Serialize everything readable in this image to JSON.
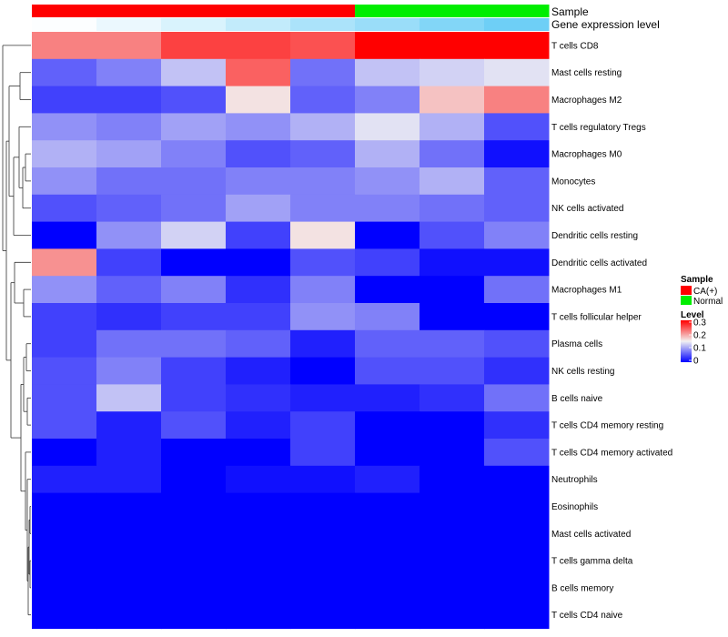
{
  "chart_data": {
    "type": "heatmap",
    "rows": [
      "T cells CD8",
      "Mast cells resting",
      "Macrophages M2",
      "T cells regulatory  Tregs",
      "Macrophages M0",
      "Monocytes",
      "NK cells activated",
      "Dendritic cells resting",
      "Dendritic cells activated",
      "Macrophages M1",
      "T cells follicular helper",
      "Plasma cells",
      "NK cells resting",
      "B cells naive",
      "T cells CD4 memory resting",
      "T cells CD4 memory activated",
      "Neutrophils",
      "Eosinophils",
      "Mast cells activated",
      "T cells gamma delta",
      "B cells memory",
      "T cells CD4 naive"
    ],
    "values": [
      [
        0.22,
        0.22,
        0.26,
        0.26,
        0.25,
        0.3,
        0.3,
        0.3
      ],
      [
        0.06,
        0.08,
        0.12,
        0.24,
        0.07,
        0.12,
        0.13,
        0.14
      ],
      [
        0.04,
        0.04,
        0.05,
        0.16,
        0.06,
        0.08,
        0.18,
        0.22
      ],
      [
        0.09,
        0.08,
        0.1,
        0.09,
        0.11,
        0.14,
        0.11,
        0.05
      ],
      [
        0.11,
        0.1,
        0.08,
        0.05,
        0.06,
        0.11,
        0.07,
        0.01
      ],
      [
        0.09,
        0.07,
        0.07,
        0.08,
        0.08,
        0.09,
        0.11,
        0.06
      ],
      [
        0.05,
        0.06,
        0.07,
        0.1,
        0.08,
        0.08,
        0.07,
        0.06
      ],
      [
        0.0,
        0.09,
        0.13,
        0.04,
        0.16,
        0.0,
        0.05,
        0.08
      ],
      [
        0.21,
        0.04,
        0.0,
        0.0,
        0.05,
        0.04,
        0.01,
        0.01
      ],
      [
        0.09,
        0.06,
        0.08,
        0.03,
        0.08,
        0.0,
        0.0,
        0.07
      ],
      [
        0.04,
        0.03,
        0.04,
        0.04,
        0.09,
        0.08,
        0.0,
        0.0
      ],
      [
        0.04,
        0.07,
        0.07,
        0.06,
        0.02,
        0.06,
        0.06,
        0.05
      ],
      [
        0.05,
        0.08,
        0.04,
        0.02,
        0.0,
        0.05,
        0.05,
        0.03
      ],
      [
        0.05,
        0.12,
        0.04,
        0.03,
        0.02,
        0.02,
        0.03,
        0.07
      ],
      [
        0.05,
        0.02,
        0.05,
        0.02,
        0.04,
        0.0,
        0.0,
        0.03
      ],
      [
        0.0,
        0.02,
        0.0,
        0.0,
        0.04,
        0.0,
        0.0,
        0.05
      ],
      [
        0.02,
        0.02,
        0.0,
        0.01,
        0.01,
        0.02,
        0.0,
        0.0
      ],
      [
        0.0,
        0.0,
        0.0,
        0.0,
        0.0,
        0.0,
        0.0,
        0.0
      ],
      [
        0.0,
        0.0,
        0.0,
        0.0,
        0.0,
        0.0,
        0.0,
        0.0
      ],
      [
        0.0,
        0.0,
        0.0,
        0.0,
        0.0,
        0.0,
        0.0,
        0.0
      ],
      [
        0.0,
        0.0,
        0.0,
        0.0,
        0.0,
        0.0,
        0.0,
        0.0
      ],
      [
        0.0,
        0.0,
        0.0,
        0.0,
        0.0,
        0.0,
        0.0,
        0.0
      ]
    ],
    "column_annotations": {
      "sample": {
        "label": "Sample",
        "values": [
          "CA(+)",
          "CA(+)",
          "CA(+)",
          "CA(+)",
          "CA(+)",
          "Normal",
          "Normal",
          "Normal"
        ]
      },
      "gene_expression": {
        "label": "Gene expression level",
        "values": [
          0.02,
          0.14,
          0.26,
          0.42,
          0.58,
          0.7,
          0.86,
          1.0
        ],
        "low_color": "#FFFFFF",
        "high_color": "#6ECFF6"
      }
    },
    "color_scale": {
      "min": 0,
      "mid": 0.15,
      "max": 0.3,
      "low": "#0000FF",
      "midcolor": "#F2F2F2",
      "high": "#FF0000"
    },
    "legend": {
      "sample_title": "Sample",
      "sample_entries": [
        {
          "label": "CA(+)",
          "color": "#FF0000"
        },
        {
          "label": "Normal",
          "color": "#00EE00"
        }
      ],
      "level_title": "Level",
      "level_ticks": [
        "0.3",
        "0.2",
        "0.1",
        "0"
      ],
      "placement": "right"
    },
    "row_dendrogram": true
  }
}
